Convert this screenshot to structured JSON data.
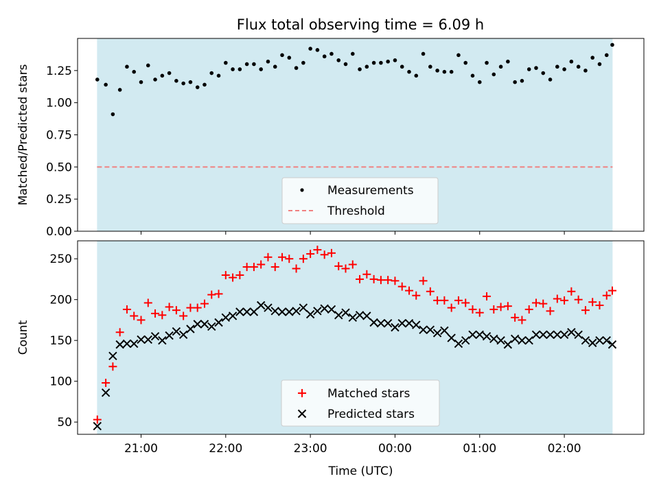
{
  "chart_data": [
    {
      "type": "scatter",
      "title": "Flux total observing time = 6.09 h",
      "ylabel": "Matched/Predicted stars",
      "xlabel": "",
      "ylim": [
        0,
        1.5
      ],
      "yticks": [
        "0.00",
        "0.25",
        "0.50",
        "0.75",
        "1.00",
        "1.25"
      ],
      "x_range_hours": [
        20.25,
        26.94
      ],
      "observing_window_hours": [
        20.48,
        26.57
      ],
      "observing_window_color": "#add8e6",
      "threshold": 0.5,
      "threshold_color": "#f08080",
      "legend_location": "lower center",
      "series": [
        {
          "name": "Measurements",
          "marker": "dot",
          "color": "#000000",
          "x": [
            "20:29",
            "20:35",
            "20:40",
            "20:45",
            "20:50",
            "20:55",
            "21:00",
            "21:05",
            "21:10",
            "21:15",
            "21:20",
            "21:25",
            "21:30",
            "21:35",
            "21:40",
            "21:45",
            "21:50",
            "21:55",
            "22:00",
            "22:05",
            "22:10",
            "22:15",
            "22:20",
            "22:25",
            "22:30",
            "22:35",
            "22:40",
            "22:45",
            "22:50",
            "22:55",
            "23:00",
            "23:05",
            "23:10",
            "23:15",
            "23:20",
            "23:25",
            "23:30",
            "23:35",
            "23:40",
            "23:45",
            "23:50",
            "23:55",
            "00:00",
            "00:05",
            "00:10",
            "00:15",
            "00:20",
            "00:25",
            "00:30",
            "00:35",
            "00:40",
            "00:45",
            "00:50",
            "00:55",
            "01:00",
            "01:05",
            "01:10",
            "01:15",
            "01:20",
            "01:25",
            "01:30",
            "01:35",
            "01:40",
            "01:45",
            "01:50",
            "01:55",
            "02:00",
            "02:05",
            "02:10",
            "02:15",
            "02:20",
            "02:25",
            "02:30",
            "02:34"
          ],
          "y": [
            1.18,
            1.14,
            0.91,
            1.1,
            1.28,
            1.24,
            1.16,
            1.29,
            1.18,
            1.21,
            1.23,
            1.17,
            1.15,
            1.16,
            1.12,
            1.14,
            1.23,
            1.21,
            1.31,
            1.26,
            1.26,
            1.3,
            1.3,
            1.26,
            1.32,
            1.28,
            1.37,
            1.35,
            1.27,
            1.31,
            1.42,
            1.41,
            1.36,
            1.38,
            1.33,
            1.3,
            1.38,
            1.26,
            1.28,
            1.31,
            1.31,
            1.32,
            1.33,
            1.28,
            1.24,
            1.21,
            1.38,
            1.28,
            1.25,
            1.24,
            1.24,
            1.37,
            1.31,
            1.21,
            1.16,
            1.31,
            1.22,
            1.28,
            1.32,
            1.16,
            1.17,
            1.26,
            1.27,
            1.23,
            1.18,
            1.28,
            1.26,
            1.32,
            1.28,
            1.25,
            1.35,
            1.3,
            1.37,
            1.45
          ]
        },
        {
          "name": "Threshold",
          "marker": "dashed-line",
          "color": "#f08080"
        }
      ]
    },
    {
      "type": "scatter",
      "title": "",
      "ylabel": "Count",
      "xlabel": "Time (UTC)",
      "ylim": [
        35,
        272
      ],
      "yticks": [
        "50",
        "100",
        "150",
        "200",
        "250"
      ],
      "xticks": [
        "21:00",
        "22:00",
        "23:00",
        "00:00",
        "01:00",
        "02:00"
      ],
      "x_range_hours": [
        20.25,
        26.94
      ],
      "observing_window_hours": [
        20.48,
        26.57
      ],
      "observing_window_color": "#add8e6",
      "legend_location": "lower center",
      "series": [
        {
          "name": "Matched stars",
          "marker": "plus",
          "color": "#ff0000",
          "x": [
            "20:29",
            "20:35",
            "20:40",
            "20:45",
            "20:50",
            "20:55",
            "21:00",
            "21:05",
            "21:10",
            "21:15",
            "21:20",
            "21:25",
            "21:30",
            "21:35",
            "21:40",
            "21:45",
            "21:50",
            "21:55",
            "22:00",
            "22:05",
            "22:10",
            "22:15",
            "22:20",
            "22:25",
            "22:30",
            "22:35",
            "22:40",
            "22:45",
            "22:50",
            "22:55",
            "23:00",
            "23:05",
            "23:10",
            "23:15",
            "23:20",
            "23:25",
            "23:30",
            "23:35",
            "23:40",
            "23:45",
            "23:50",
            "23:55",
            "00:00",
            "00:05",
            "00:10",
            "00:15",
            "00:20",
            "00:25",
            "00:30",
            "00:35",
            "00:40",
            "00:45",
            "00:50",
            "00:55",
            "01:00",
            "01:05",
            "01:10",
            "01:15",
            "01:20",
            "01:25",
            "01:30",
            "01:35",
            "01:40",
            "01:45",
            "01:50",
            "01:55",
            "02:00",
            "02:05",
            "02:10",
            "02:15",
            "02:20",
            "02:25",
            "02:30",
            "02:34"
          ],
          "y": [
            53,
            98,
            118,
            160,
            188,
            180,
            175,
            196,
            183,
            181,
            191,
            187,
            180,
            190,
            190,
            195,
            206,
            207,
            230,
            227,
            230,
            240,
            240,
            243,
            252,
            240,
            252,
            250,
            238,
            250,
            256,
            261,
            255,
            257,
            241,
            238,
            243,
            225,
            231,
            225,
            224,
            224,
            223,
            216,
            211,
            205,
            223,
            210,
            199,
            199,
            190,
            199,
            196,
            188,
            184,
            204,
            188,
            191,
            192,
            178,
            175,
            188,
            196,
            195,
            186,
            201,
            199,
            210,
            200,
            187,
            197,
            193,
            205,
            211
          ]
        },
        {
          "name": "Predicted stars",
          "marker": "x",
          "color": "#000000",
          "x": [
            "20:29",
            "20:35",
            "20:40",
            "20:45",
            "20:50",
            "20:55",
            "21:00",
            "21:05",
            "21:10",
            "21:15",
            "21:20",
            "21:25",
            "21:30",
            "21:35",
            "21:40",
            "21:45",
            "21:50",
            "21:55",
            "22:00",
            "22:05",
            "22:10",
            "22:15",
            "22:20",
            "22:25",
            "22:30",
            "22:35",
            "22:40",
            "22:45",
            "22:50",
            "22:55",
            "23:00",
            "23:05",
            "23:10",
            "23:15",
            "23:20",
            "23:25",
            "23:30",
            "23:35",
            "23:40",
            "23:45",
            "23:50",
            "23:55",
            "00:00",
            "00:05",
            "00:10",
            "00:15",
            "00:20",
            "00:25",
            "00:30",
            "00:35",
            "00:40",
            "00:45",
            "00:50",
            "00:55",
            "01:00",
            "01:05",
            "01:10",
            "01:15",
            "01:20",
            "01:25",
            "01:30",
            "01:35",
            "01:40",
            "01:45",
            "01:50",
            "01:55",
            "02:00",
            "02:05",
            "02:10",
            "02:15",
            "02:20",
            "02:25",
            "02:30",
            "02:34"
          ],
          "y": [
            45,
            86,
            131,
            145,
            146,
            146,
            151,
            151,
            155,
            150,
            156,
            161,
            157,
            164,
            170,
            170,
            167,
            172,
            178,
            180,
            185,
            185,
            185,
            193,
            190,
            186,
            185,
            185,
            186,
            190,
            182,
            186,
            189,
            188,
            181,
            184,
            178,
            181,
            180,
            172,
            171,
            171,
            166,
            171,
            171,
            169,
            163,
            163,
            159,
            162,
            153,
            146,
            150,
            157,
            157,
            155,
            152,
            150,
            145,
            152,
            150,
            150,
            157,
            157,
            157,
            157,
            157,
            160,
            157,
            150,
            147,
            150,
            150,
            145
          ]
        }
      ]
    }
  ]
}
